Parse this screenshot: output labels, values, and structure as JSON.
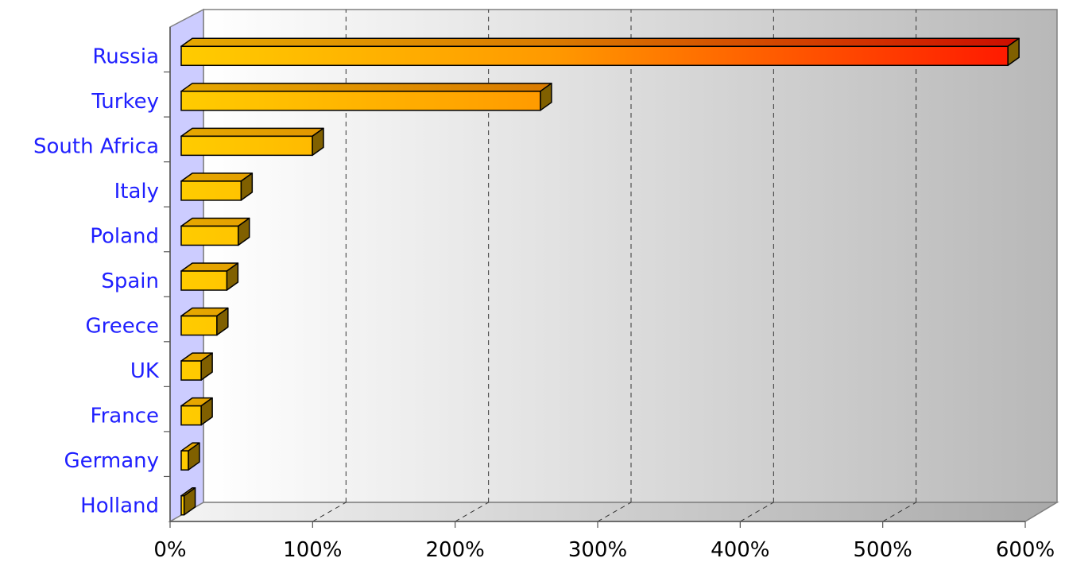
{
  "chart_data": {
    "type": "bar",
    "orientation": "horizontal",
    "three_d": true,
    "categories": [
      "Russia",
      "Turkey",
      "South Africa",
      "Italy",
      "Poland",
      "Spain",
      "Greece",
      "UK",
      "France",
      "Germany",
      "Holland"
    ],
    "values": [
      580,
      252,
      92,
      42,
      40,
      32,
      25,
      14,
      14,
      5,
      2
    ],
    "title": "",
    "xlabel": "",
    "ylabel": "",
    "xlim": [
      0,
      600
    ],
    "x_ticks": [
      0,
      100,
      200,
      300,
      400,
      500,
      600
    ],
    "x_tick_labels": [
      "0%",
      "100%",
      "200%",
      "300%",
      "400%",
      "500%",
      "600%"
    ],
    "grid": "vertical-dashed",
    "legend": "none",
    "colors": {
      "bar_start": "#ffcc00",
      "bar_mid": "#ff9900",
      "bar_end": "#ff1a00",
      "bar_side": "#806000",
      "side_wall": "#ccccff",
      "label": "#1f1fff"
    }
  }
}
